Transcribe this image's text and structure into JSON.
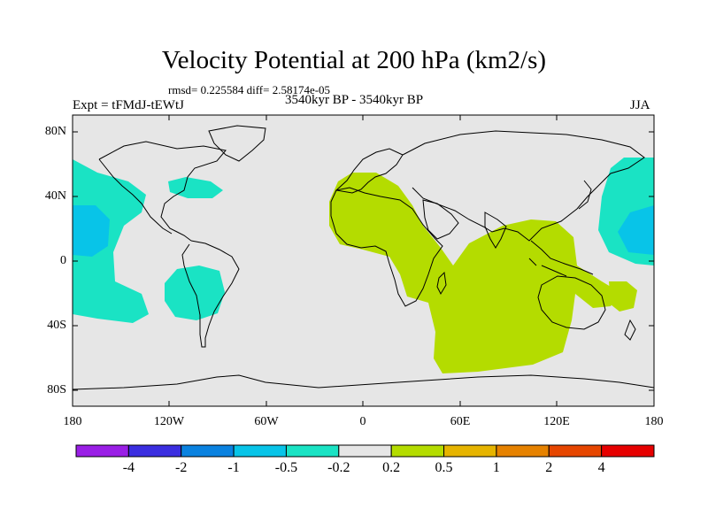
{
  "title": "Velocity Potential at 200 hPa (km2/s)",
  "stats_line": "rmsd= 0.225584 diff= 2.58174e-05",
  "experiment_label": "Expt = tFMdJ-tEWtJ",
  "period_label": "3540kyr BP - 3540kyr BP",
  "season_label": "JJA",
  "lat_labels": [
    "80N",
    "40N",
    "0",
    "40S",
    "80S"
  ],
  "lon_labels": [
    "180",
    "120W",
    "60W",
    "0",
    "60E",
    "120E",
    "180"
  ],
  "colorbar": {
    "labels": [
      "-4",
      "-2",
      "-1",
      "-0.5",
      "-0.2",
      "0.2",
      "0.5",
      "1",
      "2",
      "4"
    ],
    "colors": [
      "#9a1fe6",
      "#3b2ee0",
      "#0a82e0",
      "#08c4e8",
      "#1ae3c4",
      "#e6e6e6",
      "#b4dc00",
      "#e6b400",
      "#e68200",
      "#e64600",
      "#e60000"
    ]
  },
  "colors": {
    "land_bg": "#e6e6e6",
    "negative_fill": "#1ae3c4",
    "strong_negative_fill": "#08c4e8",
    "positive_fill": "#b4dc00"
  }
}
